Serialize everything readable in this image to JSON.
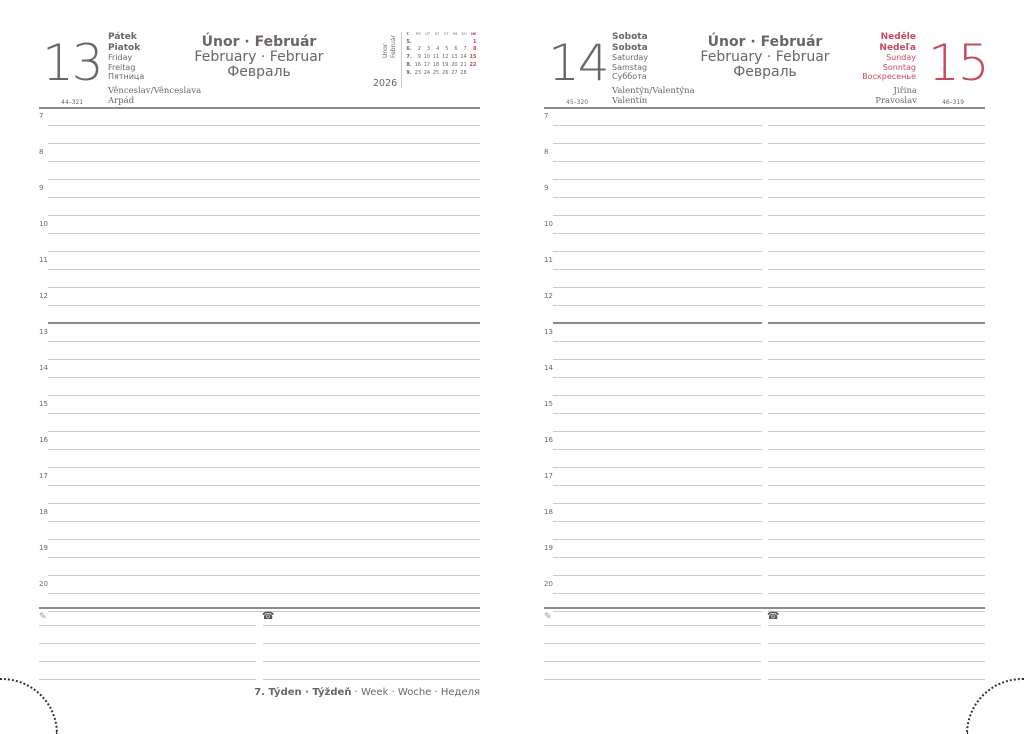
{
  "left": {
    "day": "13",
    "names": [
      "Pátek",
      "Piatok",
      "Friday",
      "Freitag",
      "Пятница"
    ],
    "code": "44–321",
    "saints": [
      "Věnceslav/Věnceslava",
      "Arpád"
    ]
  },
  "right_a": {
    "day": "14",
    "names": [
      "Sobota",
      "Sobota",
      "Saturday",
      "Samstag",
      "Суббота"
    ],
    "code": "45–320",
    "saints": [
      "Valentýn/Valentýna",
      "Valentín"
    ]
  },
  "right_b": {
    "day": "15",
    "names": [
      "Neděle",
      "Nedeľa",
      "Sunday",
      "Sonntag",
      "Воскресенье"
    ],
    "code": "46–319",
    "saints": [
      "Jiřina",
      "Pravoslav"
    ]
  },
  "month": {
    "bold": "Únor · Február",
    "line2": "February · Februar",
    "line3": "Февраль"
  },
  "mini_cal": {
    "side": [
      "Únor",
      "Február"
    ],
    "year": "2026",
    "header": [
      "T.",
      "PO",
      "ÚT",
      "ST",
      "ČT",
      "PÁ",
      "SO",
      "NE"
    ],
    "rows": [
      [
        "5.",
        "",
        "",
        "",
        "",
        "",
        "",
        "1"
      ],
      [
        "6.",
        "2",
        "3",
        "4",
        "5",
        "6",
        "7",
        "8"
      ],
      [
        "7.",
        "9",
        "10",
        "11",
        "12",
        "13",
        "14",
        "15"
      ],
      [
        "8.",
        "16",
        "17",
        "18",
        "19",
        "20",
        "21",
        "22"
      ],
      [
        "9.",
        "23",
        "24",
        "25",
        "26",
        "27",
        "28",
        ""
      ]
    ]
  },
  "hours": [
    "7",
    "8",
    "9",
    "10",
    "11",
    "12",
    "13",
    "14",
    "15",
    "16",
    "17",
    "18",
    "19",
    "20"
  ],
  "footer": {
    "bold": "7. Týden · Týždeň",
    "rest": " · Week · Woche · Неделя"
  },
  "icons": {
    "notes": "pencil-icon",
    "phone": "phone-icon"
  },
  "colors": {
    "sunday": "#c8485c",
    "text": "#6b6663"
  }
}
